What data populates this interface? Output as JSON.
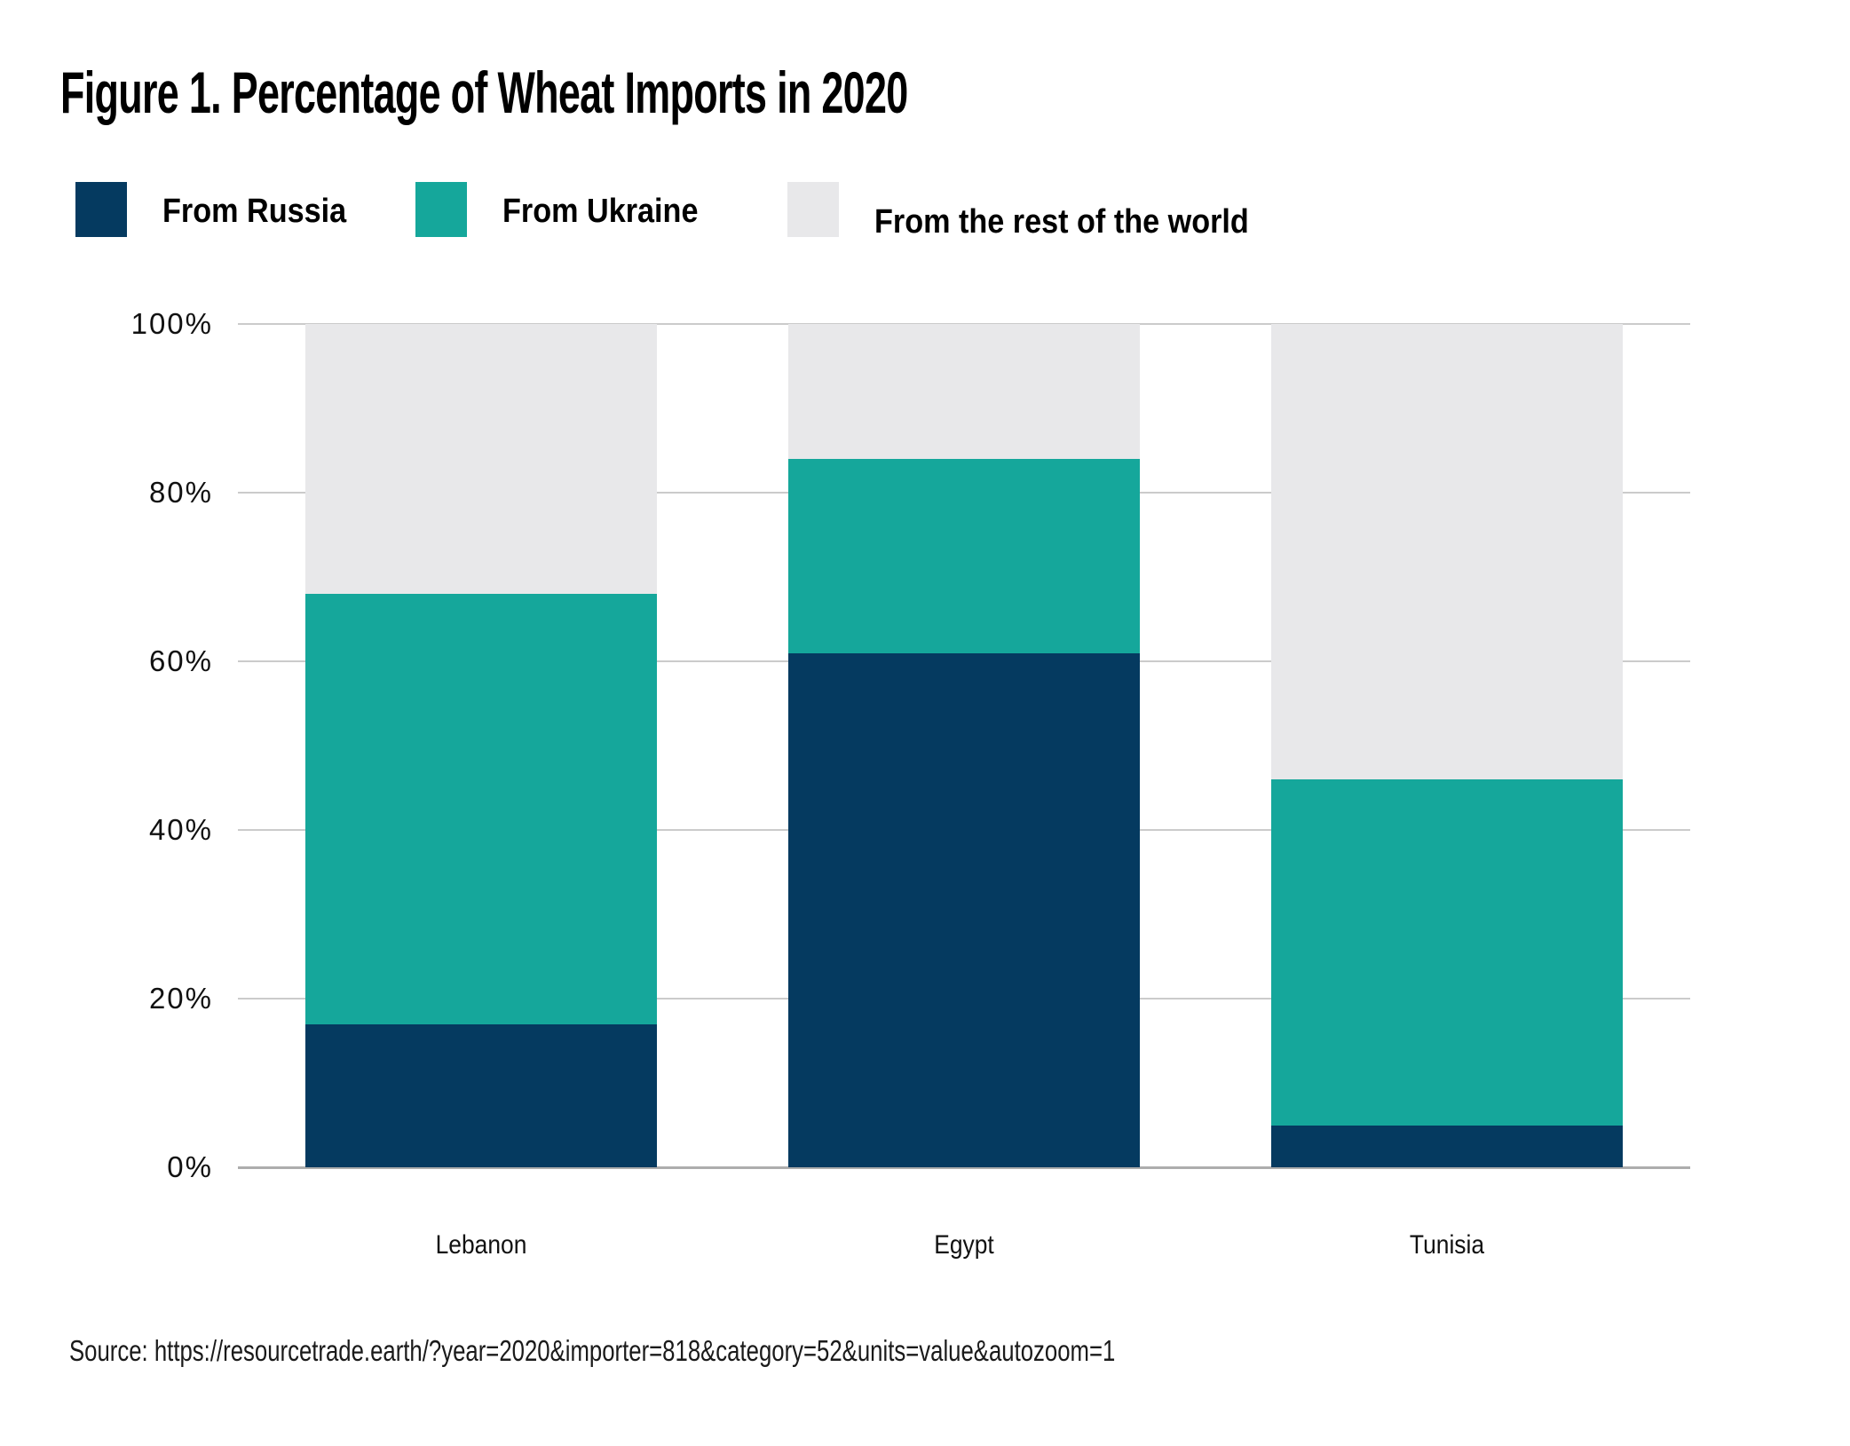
{
  "figure": {
    "title": "Figure 1. Percentage of Wheat Imports in 2020"
  },
  "legend": {
    "items": [
      {
        "label": "From Russia",
        "color": "#053A60"
      },
      {
        "label": "From Ukraine",
        "color": "#15A79B"
      },
      {
        "label": "From the rest of the world",
        "color": "#E8E8EA"
      }
    ]
  },
  "chart_data": {
    "type": "bar",
    "stacked": true,
    "units": "percent",
    "title": "Figure 1. Percentage of Wheat Imports in 2020",
    "categories": [
      "Lebanon",
      "Egypt",
      "Tunisia"
    ],
    "series": [
      {
        "name": "From Russia",
        "color": "#053A60",
        "values": [
          17,
          61,
          5
        ]
      },
      {
        "name": "From Ukraine",
        "color": "#15A79B",
        "values": [
          51,
          23,
          41
        ]
      },
      {
        "name": "From the rest of the world",
        "color": "#E8E8EA",
        "values": [
          32,
          16,
          54
        ]
      }
    ],
    "ylim": [
      0,
      100
    ],
    "yticks": [
      "0%",
      "20%",
      "40%",
      "60%",
      "80%",
      "100%"
    ],
    "grid": true,
    "legend_position": "top",
    "xlabel": "",
    "ylabel": ""
  },
  "source": {
    "text": "Source: https://resourcetrade.earth/?year=2020&importer=818&category=52&units=value&autozoom=1"
  },
  "colors": {
    "gridline": "#cbcbcb",
    "axis_line": "#adadad",
    "text": "#111111",
    "background": "#ffffff"
  }
}
